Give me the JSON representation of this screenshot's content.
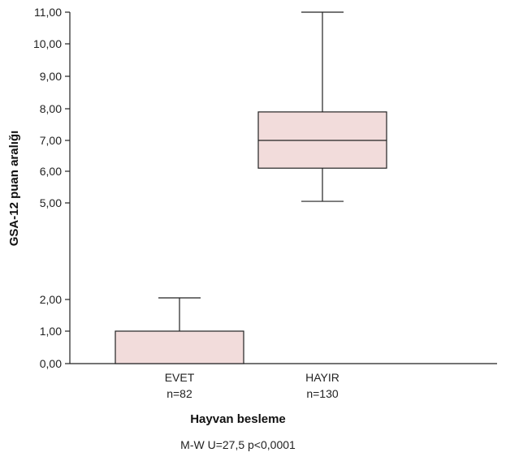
{
  "chart_data": {
    "type": "boxplot",
    "xlabel": "Hayvan besleme",
    "ylabel": "GSA-12 puan aralığı",
    "yticks": [
      "0,00",
      "1,00",
      "2,00",
      "5,00",
      "6,00",
      "7,00",
      "8,00",
      "9,00",
      "10,00",
      "11,00"
    ],
    "ytick_values": [
      0,
      1,
      2,
      5,
      6,
      7,
      8,
      9,
      10,
      11
    ],
    "axis_break": [
      2,
      5
    ],
    "categories": [
      {
        "label": "EVET",
        "n_label": "n=82",
        "whisker_low": 0,
        "q1": 0,
        "median": 0,
        "q3": 1,
        "whisker_high": 2.05
      },
      {
        "label": "HAYIR",
        "n_label": "n=130",
        "whisker_low": 5.05,
        "q1": 6.1,
        "median": 7,
        "q3": 7.9,
        "whisker_high": 11
      }
    ],
    "box_fill": "#f2dcdb",
    "box_stroke": "#222222",
    "annotation": "M-W U=27,5 p<0,0001"
  }
}
